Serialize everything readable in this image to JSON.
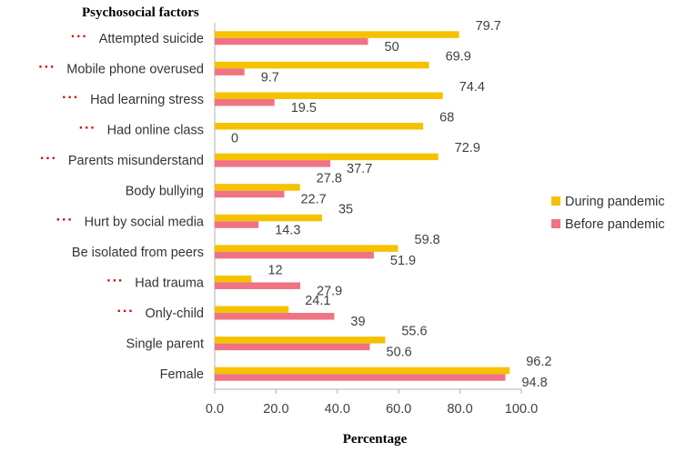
{
  "chart_data": {
    "type": "bar",
    "orientation": "horizontal",
    "title": "Psychosocial factors",
    "xlabel": "Percentage",
    "ylabel": "",
    "xlim": [
      0,
      100
    ],
    "xticks": [
      "0.0",
      "20.0",
      "40.0",
      "60.0",
      "80.0",
      "100.0"
    ],
    "grid": false,
    "legend_position": "right",
    "significance_marker": "···",
    "categories": [
      {
        "label": "Attempted suicide",
        "marked": true
      },
      {
        "label": "Mobile phone overused",
        "marked": true
      },
      {
        "label": "Had learning stress",
        "marked": true
      },
      {
        "label": "Had online class",
        "marked": true
      },
      {
        "label": "Parents misunderstand",
        "marked": true
      },
      {
        "label": "Body bullying",
        "marked": false
      },
      {
        "label": "Hurt by social media",
        "marked": true
      },
      {
        "label": "Be isolated from  peers",
        "marked": false
      },
      {
        "label": "Had trauma",
        "marked": true
      },
      {
        "label": "Only-child",
        "marked": true
      },
      {
        "label": "Single parent",
        "marked": false
      },
      {
        "label": "Female",
        "marked": false
      }
    ],
    "series": [
      {
        "name": "During pandemic",
        "color": "#f6c200",
        "values": [
          79.7,
          69.9,
          74.4,
          68,
          72.9,
          27.8,
          35,
          59.8,
          12,
          24.1,
          55.6,
          96.2
        ]
      },
      {
        "name": "Before pandemic",
        "color": "#f07383",
        "values": [
          50,
          9.7,
          19.5,
          0,
          37.7,
          22.7,
          14.3,
          51.9,
          27.9,
          39,
          50.6,
          94.8
        ]
      }
    ]
  }
}
